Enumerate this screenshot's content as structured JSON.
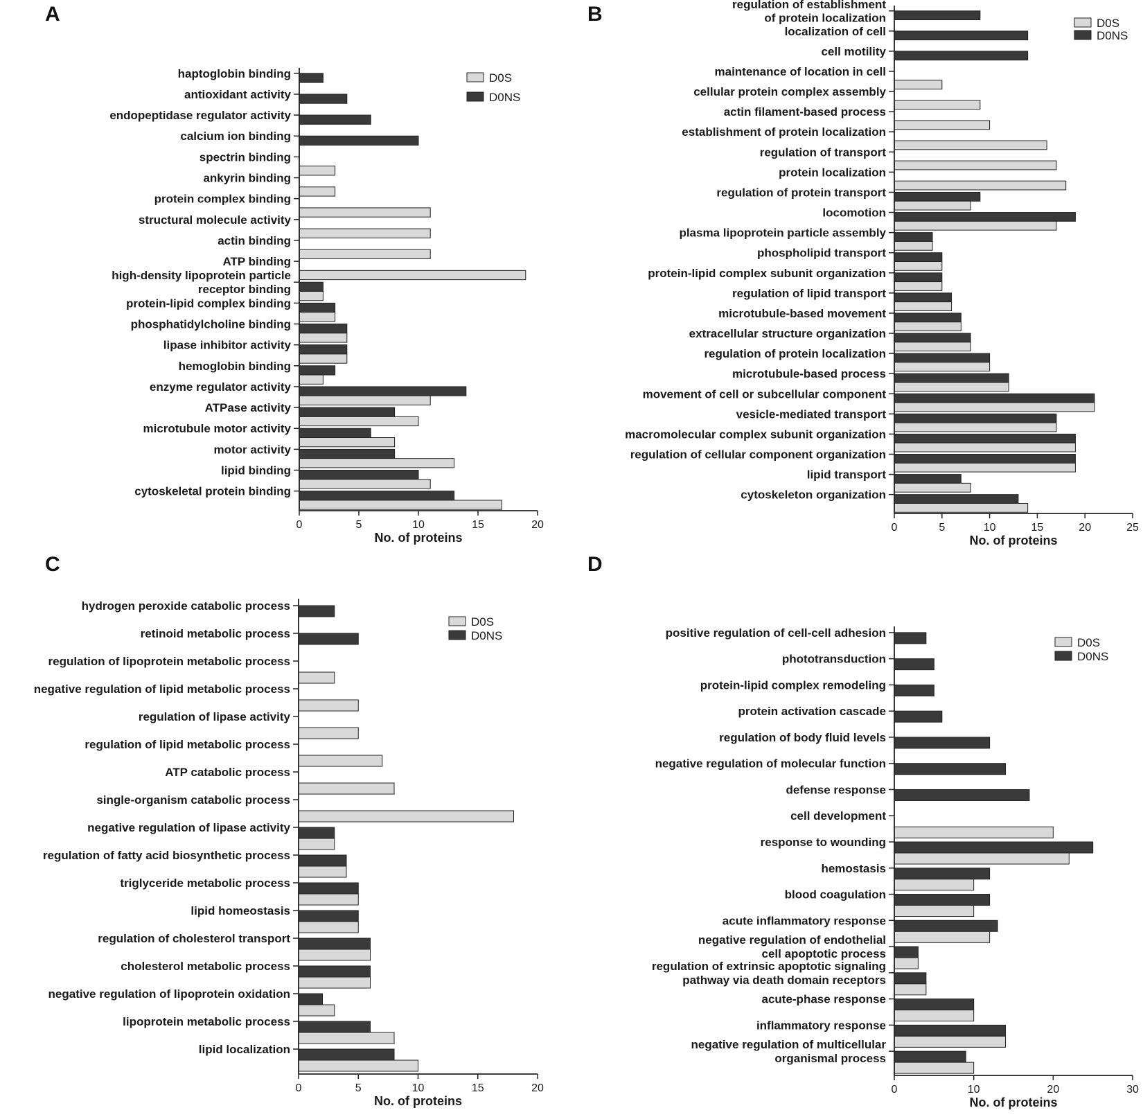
{
  "colors": {
    "D0S": "#d9d9d9",
    "D0NS": "#3a3a3a",
    "axis": "#222222"
  },
  "chart_data": [
    {
      "panel": "A",
      "type": "bar",
      "orientation": "horizontal",
      "xlabel": "No. of proteins",
      "xlim": [
        0,
        20
      ],
      "xticks": [
        0,
        5,
        10,
        15,
        20
      ],
      "legend": "top-right",
      "categories": [
        [
          "haptoglobin binding"
        ],
        [
          "antioxidant activity"
        ],
        [
          "endopeptidase regulator activity"
        ],
        [
          "calcium ion binding"
        ],
        [
          "spectrin binding"
        ],
        [
          "ankyrin binding"
        ],
        [
          "protein complex binding"
        ],
        [
          "structural molecule activity"
        ],
        [
          "actin binding"
        ],
        [
          "ATP binding"
        ],
        [
          "high-density lipoprotein particle",
          "receptor binding"
        ],
        [
          "protein-lipid complex binding"
        ],
        [
          "phosphatidylcholine binding"
        ],
        [
          "lipase inhibitor activity"
        ],
        [
          "hemoglobin binding"
        ],
        [
          "enzyme regulator activity"
        ],
        [
          "ATPase activity"
        ],
        [
          "microtubule motor activity"
        ],
        [
          "motor activity"
        ],
        [
          "lipid binding"
        ],
        [
          "cytoskeletal protein binding"
        ]
      ],
      "series": [
        {
          "name": "D0S",
          "values": [
            null,
            null,
            null,
            null,
            3,
            3,
            11,
            11,
            11,
            19,
            2,
            3,
            4,
            4,
            2,
            11,
            10,
            8,
            13,
            11,
            17
          ]
        },
        {
          "name": "D0NS",
          "values": [
            2,
            4,
            6,
            10,
            null,
            null,
            null,
            null,
            null,
            null,
            2,
            3,
            4,
            4,
            3,
            14,
            8,
            6,
            8,
            10,
            13
          ]
        }
      ]
    },
    {
      "panel": "B",
      "type": "bar",
      "orientation": "horizontal",
      "xlabel": "No. of proteins",
      "xlim": [
        0,
        25
      ],
      "xticks": [
        0,
        5,
        10,
        15,
        20,
        25
      ],
      "legend": "top-right",
      "categories": [
        [
          "regulation of establishment",
          "of protein localization"
        ],
        [
          "localization of cell"
        ],
        [
          "cell motility"
        ],
        [
          "maintenance of location in cell"
        ],
        [
          "cellular protein complex assembly"
        ],
        [
          "actin filament-based process"
        ],
        [
          "establishment of protein localization"
        ],
        [
          "regulation of transport"
        ],
        [
          "protein localization"
        ],
        [
          "regulation of protein transport"
        ],
        [
          "locomotion"
        ],
        [
          "plasma lipoprotein particle assembly"
        ],
        [
          "phospholipid transport"
        ],
        [
          "protein-lipid complex subunit organization"
        ],
        [
          "regulation of lipid transport"
        ],
        [
          "microtubule-based movement"
        ],
        [
          "extracellular structure organization"
        ],
        [
          "regulation of protein localization"
        ],
        [
          "microtubule-based process"
        ],
        [
          "movement of cell or subcellular component"
        ],
        [
          "vesicle-mediated transport"
        ],
        [
          "macromolecular complex subunit organization"
        ],
        [
          "regulation of cellular component organization"
        ],
        [
          "lipid transport"
        ],
        [
          "cytoskeleton organization"
        ]
      ],
      "series": [
        {
          "name": "D0S",
          "values": [
            null,
            null,
            null,
            5,
            9,
            10,
            16,
            17,
            18,
            8,
            17,
            4,
            5,
            5,
            6,
            7,
            8,
            10,
            12,
            21,
            17,
            19,
            19,
            8,
            14
          ]
        },
        {
          "name": "D0NS",
          "values": [
            9,
            14,
            14,
            null,
            null,
            null,
            null,
            null,
            null,
            9,
            19,
            4,
            5,
            5,
            6,
            7,
            8,
            10,
            12,
            21,
            17,
            19,
            19,
            7,
            13
          ]
        }
      ]
    },
    {
      "panel": "C",
      "type": "bar",
      "orientation": "horizontal",
      "xlabel": "No. of proteins",
      "xlim": [
        0,
        20
      ],
      "xticks": [
        0,
        5,
        10,
        15,
        20
      ],
      "legend": "top-right",
      "categories": [
        [
          "hydrogen peroxide catabolic process"
        ],
        [
          "retinoid metabolic process"
        ],
        [
          "regulation of lipoprotein metabolic process"
        ],
        [
          "negative regulation of lipid metabolic process"
        ],
        [
          "regulation of lipase activity"
        ],
        [
          "regulation of lipid metabolic process"
        ],
        [
          "ATP catabolic process"
        ],
        [
          "single-organism catabolic process"
        ],
        [
          "negative regulation of lipase activity"
        ],
        [
          "regulation of fatty acid biosynthetic process"
        ],
        [
          "triglyceride metabolic process"
        ],
        [
          "lipid homeostasis"
        ],
        [
          "regulation of cholesterol transport"
        ],
        [
          "cholesterol metabolic process"
        ],
        [
          "negative regulation of lipoprotein oxidation"
        ],
        [
          "lipoprotein metabolic process"
        ],
        [
          "lipid localization"
        ]
      ],
      "series": [
        {
          "name": "D0S",
          "values": [
            null,
            null,
            3,
            5,
            5,
            7,
            8,
            18,
            3,
            4,
            5,
            5,
            6,
            6,
            3,
            8,
            10
          ]
        },
        {
          "name": "D0NS",
          "values": [
            3,
            5,
            null,
            null,
            null,
            null,
            null,
            null,
            3,
            4,
            5,
            5,
            6,
            6,
            2,
            6,
            8
          ]
        }
      ]
    },
    {
      "panel": "D",
      "type": "bar",
      "orientation": "horizontal",
      "xlabel": "No. of proteins",
      "xlim": [
        0,
        30
      ],
      "xticks": [
        0,
        10,
        20,
        30
      ],
      "legend": "top-right",
      "categories": [
        [
          "positive regulation of cell-cell adhesion"
        ],
        [
          "phototransduction"
        ],
        [
          "protein-lipid complex remodeling"
        ],
        [
          "protein activation cascade"
        ],
        [
          "regulation of body fluid levels"
        ],
        [
          "negative regulation of molecular function"
        ],
        [
          "defense response"
        ],
        [
          "cell development"
        ],
        [
          "response to wounding"
        ],
        [
          "hemostasis"
        ],
        [
          "blood coagulation"
        ],
        [
          "acute inflammatory response"
        ],
        [
          "negative regulation of endothelial",
          "cell apoptotic process"
        ],
        [
          "regulation of extrinsic apoptotic signaling",
          "pathway via death domain receptors"
        ],
        [
          "acute-phase response"
        ],
        [
          "inflammatory response"
        ],
        [
          "negative regulation of multicellular",
          "organismal process"
        ]
      ],
      "series": [
        {
          "name": "D0S",
          "values": [
            null,
            null,
            null,
            null,
            null,
            null,
            null,
            20,
            22,
            10,
            10,
            12,
            3,
            4,
            10,
            14,
            10
          ]
        },
        {
          "name": "D0NS",
          "values": [
            4,
            5,
            5,
            6,
            12,
            14,
            17,
            null,
            25,
            12,
            12,
            13,
            3,
            4,
            10,
            14,
            9
          ]
        }
      ]
    }
  ]
}
